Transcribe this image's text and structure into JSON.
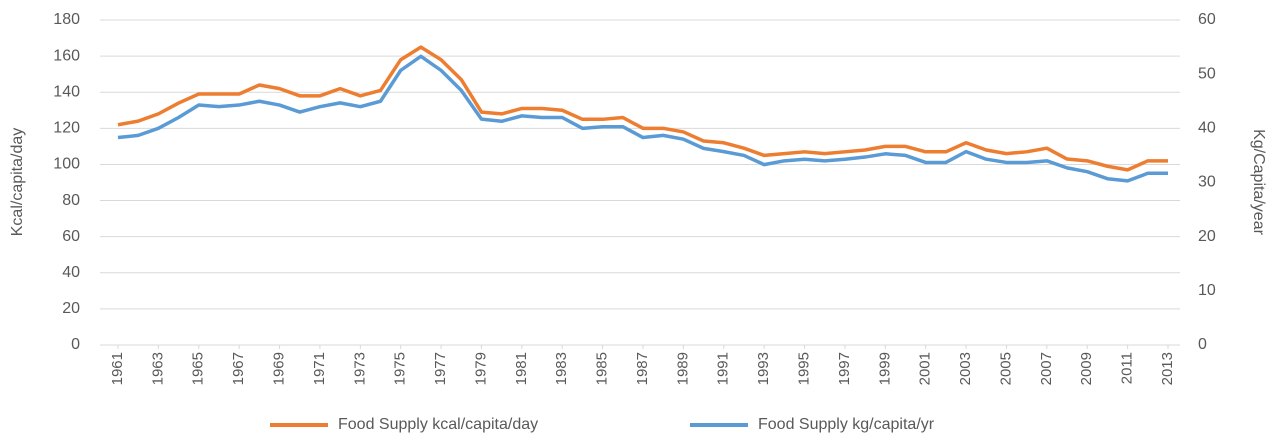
{
  "chart_data": {
    "type": "line",
    "x": [
      1961,
      1962,
      1963,
      1964,
      1965,
      1966,
      1967,
      1968,
      1969,
      1970,
      1971,
      1972,
      1973,
      1974,
      1975,
      1976,
      1977,
      1978,
      1979,
      1980,
      1981,
      1982,
      1983,
      1984,
      1985,
      1986,
      1987,
      1988,
      1989,
      1990,
      1991,
      1992,
      1993,
      1994,
      1995,
      1996,
      1997,
      1998,
      1999,
      2000,
      2001,
      2002,
      2003,
      2004,
      2005,
      2006,
      2007,
      2008,
      2009,
      2010,
      2011,
      2012,
      2013
    ],
    "xlim": [
      1961,
      2013
    ],
    "xticks": [
      1961,
      1963,
      1965,
      1967,
      1969,
      1971,
      1973,
      1975,
      1977,
      1979,
      1981,
      1983,
      1985,
      1987,
      1989,
      1991,
      1993,
      1995,
      1997,
      1999,
      2001,
      2003,
      2005,
      2007,
      2009,
      2011,
      2013
    ],
    "ylabel": "Kcal/capita/day",
    "y2label": "Kg/Capita/year",
    "ylim": [
      0,
      180
    ],
    "yticks": [
      0,
      20,
      40,
      60,
      80,
      100,
      120,
      140,
      160,
      180
    ],
    "y2lim": [
      0,
      60
    ],
    "y2ticks": [
      0,
      10,
      20,
      30,
      40,
      50,
      60
    ],
    "grid": true,
    "legend": "bottom",
    "series": [
      {
        "name": "Food Supply kcal/capita/day",
        "color": "#ed7d31",
        "values": [
          122,
          124,
          128,
          134,
          139,
          139,
          139,
          144,
          142,
          138,
          138,
          142,
          138,
          141,
          158,
          165,
          158,
          147,
          129,
          128,
          131,
          131,
          130,
          125,
          125,
          126,
          120,
          120,
          118,
          113,
          112,
          109,
          105,
          106,
          107,
          106,
          107,
          108,
          110,
          110,
          107,
          107,
          112,
          108,
          106,
          107,
          109,
          103,
          102,
          99,
          97,
          102,
          102
        ]
      },
      {
        "name": "Food Supply kg/capita/yr",
        "color": "#5b9bd5",
        "axis": "y2",
        "values": [
          38.3,
          38.7,
          40,
          42,
          44.3,
          44,
          44.3,
          45,
          44.3,
          43,
          44,
          44.7,
          44,
          45,
          50.7,
          53.3,
          50.7,
          47,
          41.7,
          41.3,
          42.3,
          42,
          42,
          40,
          40.3,
          40.3,
          38.3,
          38.7,
          38,
          36.3,
          35.7,
          35,
          33.3,
          34,
          34.3,
          34,
          34.3,
          34.7,
          35.3,
          35,
          33.7,
          33.7,
          35.7,
          34.3,
          33.7,
          33.7,
          34,
          32.7,
          32,
          30.7,
          30.3,
          31.7,
          31.7
        ]
      }
    ]
  }
}
